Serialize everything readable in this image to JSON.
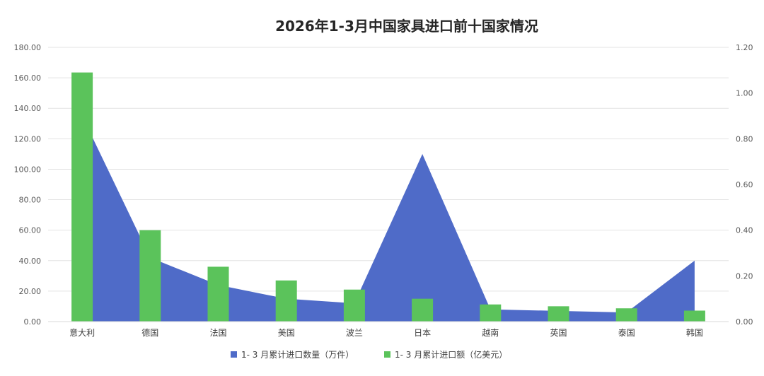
{
  "chart_data": {
    "type": "bar",
    "title": "2026年1-3月中国家具进口前十国家情况",
    "categories": [
      "意大利",
      "德国",
      "法国",
      "美国",
      "波兰",
      "日本",
      "越南",
      "英国",
      "泰国",
      "韩国"
    ],
    "series": [
      {
        "name": "1-  3 月累计进口数量（万件）",
        "type": "area",
        "axis": "left",
        "color": "#4F6BC8",
        "values": [
          135,
          42,
          24,
          15,
          12,
          110,
          8,
          7,
          6,
          40
        ]
      },
      {
        "name": "1-  3 月累计进口额（亿美元）",
        "type": "bar",
        "axis": "right",
        "color": "#5BC35B",
        "values": [
          1.09,
          0.4,
          0.24,
          0.18,
          0.14,
          0.1,
          0.075,
          0.067,
          0.058,
          0.048
        ]
      }
    ],
    "y_left": {
      "min": 0,
      "max": 180,
      "ticks": [
        "0.00",
        "20.00",
        "40.00",
        "60.00",
        "80.00",
        "100.00",
        "120.00",
        "140.00",
        "160.00",
        "180.00"
      ]
    },
    "y_right": {
      "min": 0,
      "max": 1.2,
      "ticks": [
        "0.00",
        "0.20",
        "0.40",
        "0.60",
        "0.80",
        "1.00",
        "1.20"
      ]
    },
    "grid": true,
    "legend_position": "bottom"
  }
}
